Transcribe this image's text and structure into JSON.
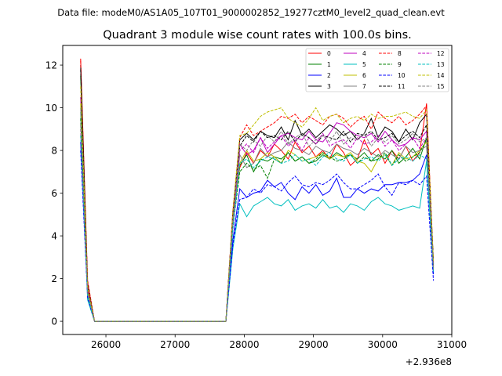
{
  "chart_data": {
    "type": "line",
    "suptitle": "Data file: modeM0/AS1A05_107T01_9000002852_19277cztM0_level2_quad_clean.evt",
    "title": "Quadrant 3 module wise count rates with 100.0s bins.",
    "xlabel": "",
    "ylabel": "",
    "x_offset_label": "+2.936e8",
    "x_start": 25635,
    "x_step": 100,
    "xlim": [
      25376,
      31000
    ],
    "ylim": [
      -0.62,
      12.92
    ],
    "xticks": [
      26000,
      27000,
      28000,
      29000,
      30000,
      31000
    ],
    "yticks": [
      0,
      2,
      4,
      6,
      8,
      10,
      12
    ],
    "grid": false,
    "legend_position": "top-right",
    "series": [
      {
        "name": "0",
        "color": "#ff0000",
        "dash": false,
        "values": [
          12.3,
          1.8,
          0,
          0,
          0,
          0,
          0,
          0,
          0,
          0,
          0,
          0,
          0,
          0,
          0,
          0,
          0,
          0,
          0,
          0,
          0,
          0,
          5.0,
          7.2,
          7.9,
          7.4,
          8.0,
          7.7,
          8.3,
          8.0,
          7.6,
          8.4,
          7.9,
          8.2,
          7.7,
          8.0,
          7.6,
          8.3,
          7.9,
          7.3,
          7.6,
          8.5,
          7.8,
          8.1,
          7.4,
          8.0,
          7.6,
          8.2,
          7.5,
          7.9,
          10.2,
          2.6
        ]
      },
      {
        "name": "1",
        "color": "#008000",
        "dash": false,
        "values": [
          11.5,
          1.5,
          0,
          0,
          0,
          0,
          0,
          0,
          0,
          0,
          0,
          0,
          0,
          0,
          0,
          0,
          0,
          0,
          0,
          0,
          0,
          0,
          4.6,
          7.3,
          7.8,
          7.0,
          7.6,
          7.5,
          7.7,
          7.6,
          7.9,
          7.5,
          7.7,
          7.4,
          7.5,
          7.8,
          7.6,
          7.9,
          7.7,
          7.8,
          7.6,
          7.9,
          7.5,
          7.8,
          7.6,
          8.0,
          7.4,
          7.7,
          8.1,
          7.6,
          8.6,
          2.5
        ]
      },
      {
        "name": "2",
        "color": "#0000ff",
        "dash": false,
        "values": [
          8.4,
          1.2,
          0,
          0,
          0,
          0,
          0,
          0,
          0,
          0,
          0,
          0,
          0,
          0,
          0,
          0,
          0,
          0,
          0,
          0,
          0,
          0,
          3.8,
          6.2,
          5.8,
          6.0,
          6.1,
          6.6,
          6.3,
          6.5,
          6.0,
          5.7,
          6.3,
          6.0,
          6.4,
          5.9,
          6.1,
          6.7,
          5.8,
          5.8,
          6.2,
          6.0,
          6.2,
          6.1,
          6.4,
          6.4,
          6.5,
          6.5,
          6.6,
          6.9,
          7.8,
          2.2
        ]
      },
      {
        "name": "3",
        "color": "#000000",
        "dash": false,
        "values": [
          12.0,
          1.6,
          0,
          0,
          0,
          0,
          0,
          0,
          0,
          0,
          0,
          0,
          0,
          0,
          0,
          0,
          0,
          0,
          0,
          0,
          0,
          0,
          5.1,
          8.5,
          8.8,
          8.5,
          8.9,
          8.7,
          8.6,
          9.1,
          8.5,
          9.4,
          8.7,
          9.0,
          8.6,
          8.9,
          9.2,
          9.0,
          8.7,
          8.9,
          8.5,
          8.8,
          9.5,
          8.6,
          9.1,
          8.9,
          8.4,
          9.0,
          8.5,
          9.3,
          9.7,
          2.8
        ]
      },
      {
        "name": "4",
        "color": "#bf00bf",
        "dash": false,
        "values": [
          10.5,
          1.5,
          0,
          0,
          0,
          0,
          0,
          0,
          0,
          0,
          0,
          0,
          0,
          0,
          0,
          0,
          0,
          0,
          0,
          0,
          0,
          0,
          4.8,
          8.3,
          7.8,
          8.0,
          8.6,
          7.9,
          8.3,
          8.7,
          8.8,
          8.6,
          8.5,
          8.9,
          8.5,
          8.4,
          8.8,
          9.3,
          9.2,
          8.9,
          8.7,
          8.6,
          8.8,
          8.4,
          8.9,
          8.5,
          8.2,
          8.3,
          8.6,
          8.5,
          8.9,
          2.6
        ]
      },
      {
        "name": "5",
        "color": "#00bfbf",
        "dash": false,
        "values": [
          9.8,
          1.0,
          0,
          0,
          0,
          0,
          0,
          0,
          0,
          0,
          0,
          0,
          0,
          0,
          0,
          0,
          0,
          0,
          0,
          0,
          0,
          0,
          3.4,
          5.5,
          4.9,
          5.4,
          5.6,
          5.8,
          5.5,
          5.4,
          5.7,
          5.2,
          5.4,
          5.5,
          5.3,
          5.7,
          5.3,
          5.4,
          5.1,
          5.5,
          5.4,
          5.2,
          5.6,
          5.8,
          5.5,
          5.4,
          5.2,
          5.3,
          5.4,
          5.3,
          7.5,
          2.3
        ]
      },
      {
        "name": "6",
        "color": "#bfbf00",
        "dash": false,
        "values": [
          10.2,
          1.4,
          0,
          0,
          0,
          0,
          0,
          0,
          0,
          0,
          0,
          0,
          0,
          0,
          0,
          0,
          0,
          0,
          0,
          0,
          0,
          0,
          4.7,
          7.4,
          8.0,
          7.5,
          7.6,
          7.9,
          7.7,
          7.4,
          8.0,
          7.8,
          7.5,
          7.6,
          7.7,
          7.9,
          7.6,
          7.8,
          7.7,
          7.9,
          7.5,
          7.4,
          7.0,
          7.6,
          7.8,
          7.3,
          7.9,
          7.6,
          7.7,
          8.0,
          8.4,
          2.5
        ]
      },
      {
        "name": "7",
        "color": "#808080",
        "dash": false,
        "values": [
          10.0,
          1.3,
          0,
          0,
          0,
          0,
          0,
          0,
          0,
          0,
          0,
          0,
          0,
          0,
          0,
          0,
          0,
          0,
          0,
          0,
          0,
          0,
          4.5,
          7.8,
          7.2,
          7.4,
          8.1,
          7.7,
          7.9,
          8.0,
          8.4,
          8.1,
          8.0,
          7.8,
          8.2,
          8.0,
          7.9,
          8.3,
          8.1,
          8.0,
          7.8,
          8.1,
          7.9,
          7.7,
          8.0,
          7.8,
          7.6,
          8.2,
          7.9,
          8.0,
          8.2,
          2.4
        ]
      },
      {
        "name": "8",
        "color": "#ff0000",
        "dash": true,
        "values": [
          12.2,
          1.9,
          0,
          0,
          0,
          0,
          0,
          0,
          0,
          0,
          0,
          0,
          0,
          0,
          0,
          0,
          0,
          0,
          0,
          0,
          0,
          0,
          5.2,
          8.6,
          9.2,
          8.7,
          8.9,
          9.1,
          9.3,
          9.6,
          9.5,
          9.7,
          9.3,
          9.6,
          9.4,
          9.2,
          9.6,
          9.7,
          9.5,
          9.1,
          9.4,
          9.6,
          9.0,
          9.8,
          9.5,
          9.3,
          9.6,
          9.2,
          9.4,
          9.7,
          10.1,
          2.7
        ]
      },
      {
        "name": "9",
        "color": "#008000",
        "dash": true,
        "values": [
          9.5,
          1.3,
          0,
          0,
          0,
          0,
          0,
          0,
          0,
          0,
          0,
          0,
          0,
          0,
          0,
          0,
          0,
          0,
          0,
          0,
          0,
          0,
          4.4,
          7.0,
          7.4,
          7.1,
          7.3,
          6.7,
          7.6,
          7.4,
          7.9,
          7.5,
          7.7,
          7.4,
          7.6,
          7.9,
          7.7,
          7.5,
          7.6,
          7.8,
          7.4,
          7.7,
          7.5,
          7.6,
          7.9,
          7.3,
          7.8,
          7.5,
          7.7,
          7.9,
          8.5,
          2.5
        ]
      },
      {
        "name": "10",
        "color": "#0000ff",
        "dash": true,
        "values": [
          8.0,
          1.1,
          0,
          0,
          0,
          0,
          0,
          0,
          0,
          0,
          0,
          0,
          0,
          0,
          0,
          0,
          0,
          0,
          0,
          0,
          0,
          0,
          3.6,
          5.7,
          5.8,
          6.2,
          6.0,
          6.4,
          6.3,
          6.1,
          6.5,
          6.8,
          6.4,
          6.3,
          6.5,
          6.4,
          6.6,
          6.9,
          6.5,
          6.2,
          6.2,
          6.4,
          6.6,
          6.9,
          6.3,
          5.9,
          6.5,
          6.4,
          6.6,
          6.4,
          6.8,
          1.9
        ]
      },
      {
        "name": "11",
        "color": "#000000",
        "dash": true,
        "values": [
          11.8,
          1.7,
          0,
          0,
          0,
          0,
          0,
          0,
          0,
          0,
          0,
          0,
          0,
          0,
          0,
          0,
          0,
          0,
          0,
          0,
          0,
          0,
          5.0,
          8.2,
          8.7,
          8.4,
          8.9,
          8.6,
          8.7,
          8.5,
          8.9,
          8.4,
          8.8,
          8.6,
          8.3,
          8.7,
          8.6,
          8.5,
          8.9,
          8.4,
          8.8,
          8.7,
          8.9,
          8.5,
          8.6,
          8.8,
          8.4,
          8.7,
          8.9,
          8.6,
          9.2,
          2.7
        ]
      },
      {
        "name": "12",
        "color": "#bf00bf",
        "dash": true,
        "values": [
          9.0,
          1.4,
          0,
          0,
          0,
          0,
          0,
          0,
          0,
          0,
          0,
          0,
          0,
          0,
          0,
          0,
          0,
          0,
          0,
          0,
          0,
          0,
          4.6,
          8.0,
          8.3,
          7.9,
          8.6,
          8.1,
          8.4,
          8.7,
          8.2,
          8.5,
          8.0,
          8.6,
          8.3,
          8.8,
          8.2,
          8.4,
          8.5,
          8.1,
          8.6,
          8.3,
          8.4,
          8.7,
          8.2,
          8.5,
          8.0,
          8.3,
          8.6,
          8.1,
          8.6,
          2.6
        ]
      },
      {
        "name": "13",
        "color": "#00bfbf",
        "dash": true,
        "values": [
          8.7,
          1.2,
          0,
          0,
          0,
          0,
          0,
          0,
          0,
          0,
          0,
          0,
          0,
          0,
          0,
          0,
          0,
          0,
          0,
          0,
          0,
          0,
          4.3,
          7.4,
          7.6,
          7.2,
          7.5,
          7.7,
          7.6,
          7.4,
          7.5,
          7.8,
          7.5,
          7.6,
          7.3,
          7.7,
          7.9,
          7.6,
          7.5,
          7.8,
          7.4,
          7.6,
          7.7,
          7.5,
          7.8,
          7.3,
          7.6,
          7.7,
          7.5,
          7.8,
          7.6,
          2.4
        ]
      },
      {
        "name": "14",
        "color": "#bfbf00",
        "dash": true,
        "values": [
          11.0,
          1.6,
          0,
          0,
          0,
          0,
          0,
          0,
          0,
          0,
          0,
          0,
          0,
          0,
          0,
          0,
          0,
          0,
          0,
          0,
          0,
          0,
          5.1,
          8.7,
          8.8,
          9.2,
          9.6,
          9.8,
          9.9,
          10.0,
          9.5,
          9.3,
          9.1,
          9.5,
          10.0,
          9.4,
          9.6,
          9.7,
          9.3,
          9.5,
          9.6,
          9.4,
          9.7,
          9.5,
          9.6,
          9.6,
          9.7,
          9.8,
          9.6,
          9.5,
          9.9,
          2.8
        ]
      },
      {
        "name": "15",
        "color": "#808080",
        "dash": true,
        "values": [
          9.2,
          1.3,
          0,
          0,
          0,
          0,
          0,
          0,
          0,
          0,
          0,
          0,
          0,
          0,
          0,
          0,
          0,
          0,
          0,
          0,
          0,
          0,
          4.7,
          8.3,
          8.0,
          8.5,
          8.2,
          8.7,
          8.4,
          8.9,
          8.3,
          8.6,
          8.8,
          8.2,
          8.5,
          8.7,
          8.4,
          8.9,
          8.3,
          8.6,
          8.5,
          8.8,
          8.2,
          8.6,
          8.4,
          8.7,
          8.3,
          8.5,
          8.8,
          8.4,
          8.6,
          2.5
        ]
      }
    ]
  }
}
